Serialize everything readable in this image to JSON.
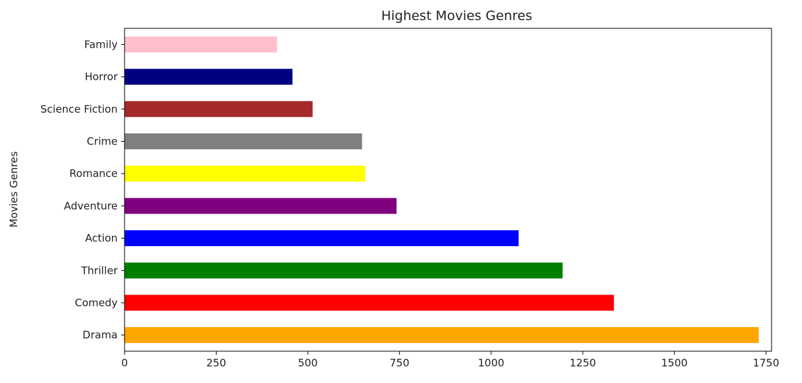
{
  "chart_data": {
    "type": "bar",
    "orientation": "horizontal",
    "title": "Highest Movies Genres",
    "xlabel": "",
    "ylabel": "Movies Genres",
    "categories": [
      "Drama",
      "Comedy",
      "Thriller",
      "Action",
      "Adventure",
      "Romance",
      "Crime",
      "Science Fiction",
      "Horror",
      "Family"
    ],
    "values": [
      1730,
      1335,
      1195,
      1075,
      742,
      657,
      648,
      513,
      458,
      416
    ],
    "colors": [
      "#ffa500",
      "#ff0000",
      "#008000",
      "#0000ff",
      "#800080",
      "#ffff00",
      "#808080",
      "#a52a2a",
      "#000080",
      "#ffc0cb"
    ],
    "xticks": [
      0,
      250,
      500,
      750,
      1000,
      1250,
      1500,
      1750
    ],
    "xlim": [
      0,
      1765
    ],
    "grid": false,
    "legend": "none"
  }
}
